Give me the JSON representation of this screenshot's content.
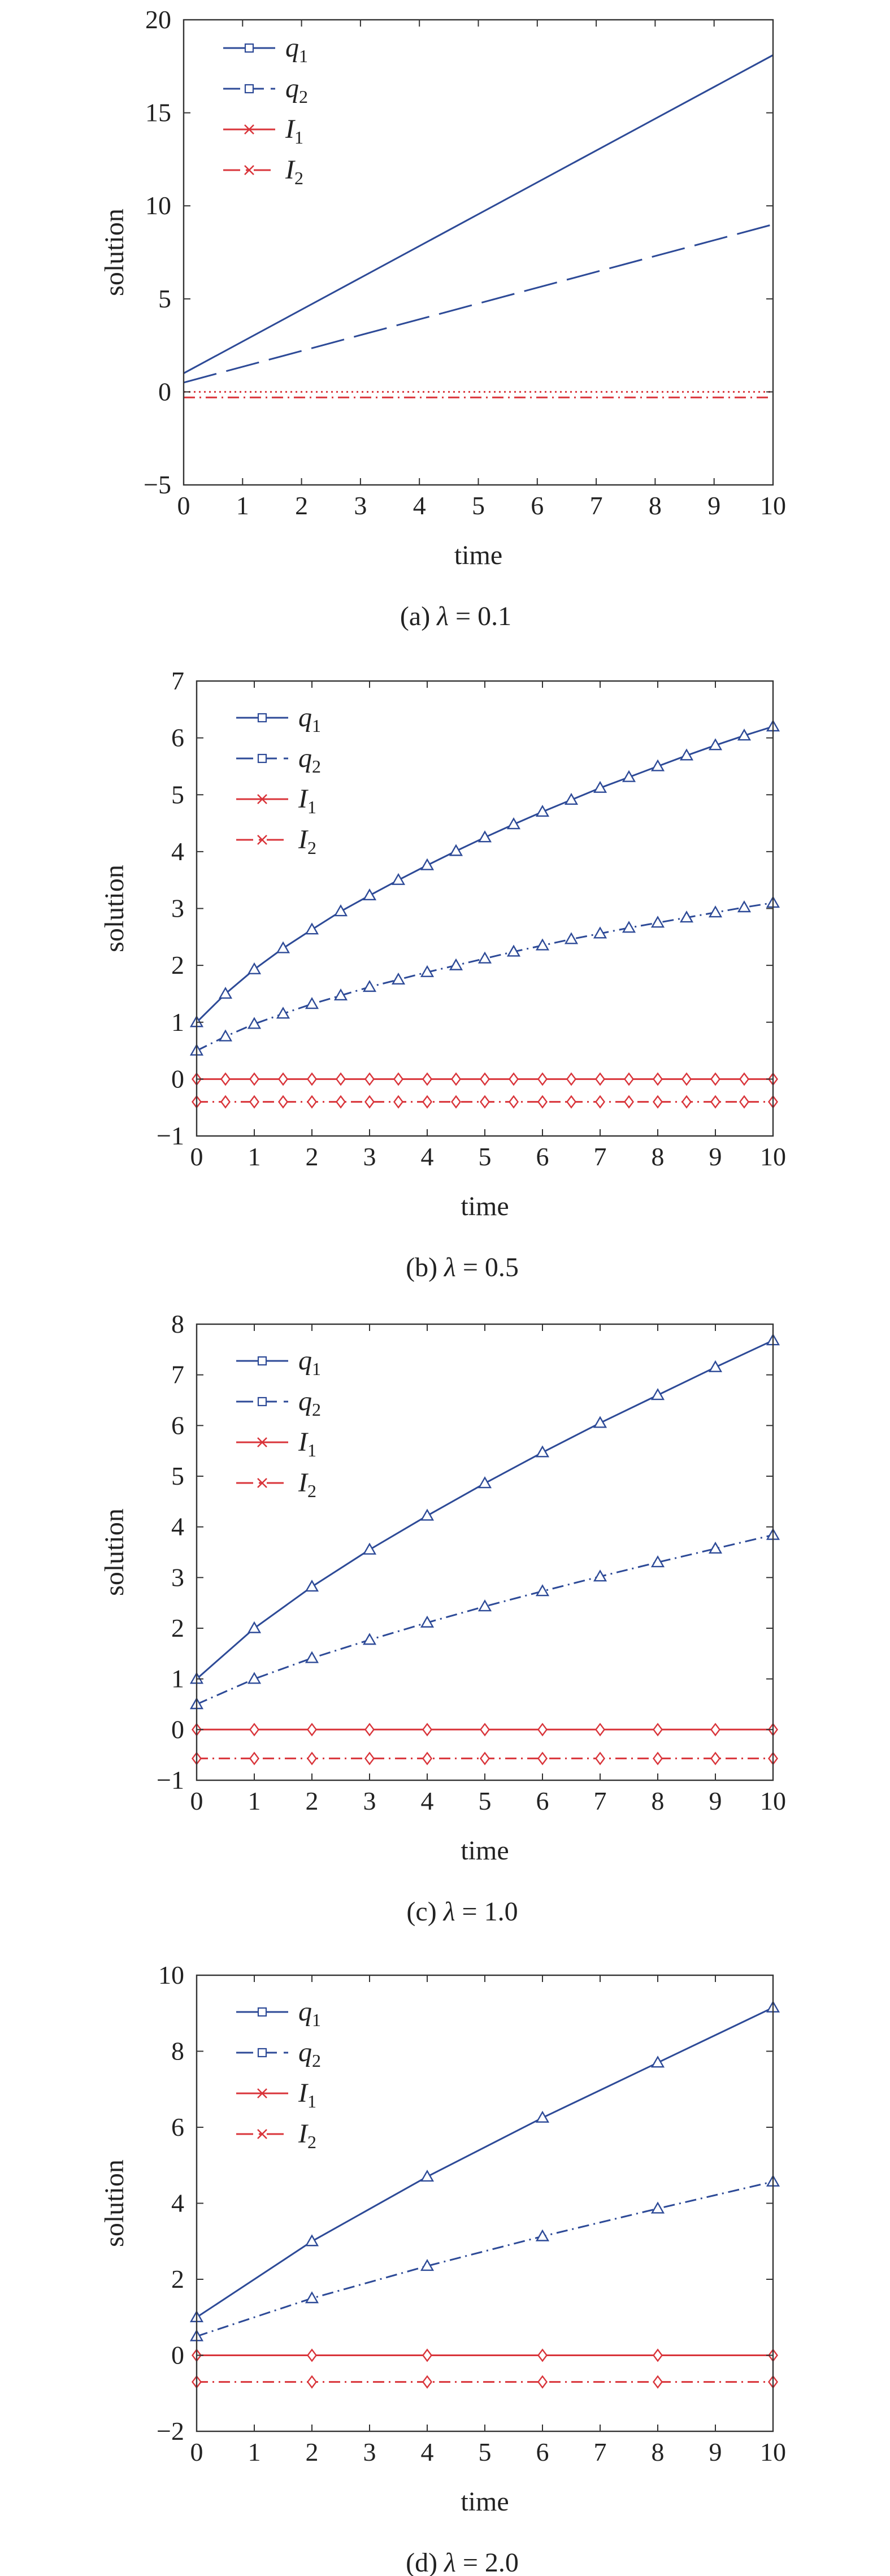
{
  "colors": {
    "blue": "#2d4a97",
    "red": "#d9343a",
    "axis": "#333333"
  },
  "chart_data": [
    {
      "type": "line",
      "caption_prefix": "(a) ",
      "caption_sym": "λ",
      "caption_rest": " = 0.1",
      "xlabel": "time",
      "ylabel": "solution",
      "xlim": [
        0,
        10
      ],
      "ylim": [
        -5,
        20
      ],
      "xticks": [
        "0",
        "1",
        "2",
        "3",
        "4",
        "5",
        "6",
        "7",
        "8",
        "9",
        "10"
      ],
      "yticks": [
        "−5",
        "0",
        "5",
        "10",
        "15",
        "20"
      ],
      "ytick_values": [
        -5,
        0,
        5,
        10,
        15,
        20
      ],
      "legend": [
        {
          "var": "q",
          "sub": "1",
          "style": "solid",
          "color": "blue",
          "marker": "square"
        },
        {
          "var": "q",
          "sub": "2",
          "style": "dash",
          "color": "blue",
          "marker": "square"
        },
        {
          "var": "I",
          "sub": "1",
          "style": "solid",
          "color": "red",
          "marker": "x"
        },
        {
          "var": "I",
          "sub": "2",
          "style": "dashdot",
          "color": "red",
          "marker": "x"
        }
      ],
      "series": [
        {
          "x": [
            0,
            10
          ],
          "y": [
            1,
            18.1
          ],
          "style": "solid",
          "color": "blue",
          "marker": "none"
        },
        {
          "x": [
            0,
            10
          ],
          "y": [
            0.5,
            9
          ],
          "style": "longdash",
          "color": "blue",
          "marker": "none"
        },
        {
          "x": [
            0,
            10
          ],
          "y": [
            0,
            0
          ],
          "style": "dotted",
          "color": "red",
          "marker": "none"
        },
        {
          "x": [
            0,
            10
          ],
          "y": [
            -0.3,
            -0.3
          ],
          "style": "dashdot",
          "color": "red",
          "marker": "none"
        }
      ]
    },
    {
      "type": "line",
      "caption_prefix": "(b) ",
      "caption_sym": "λ",
      "caption_rest": " = 0.5",
      "xlabel": "time",
      "ylabel": "solution",
      "xlim": [
        0,
        10
      ],
      "ylim": [
        -1,
        7
      ],
      "xticks": [
        "0",
        "1",
        "2",
        "3",
        "4",
        "5",
        "6",
        "7",
        "8",
        "9",
        "10"
      ],
      "yticks": [
        "−1",
        "0",
        "1",
        "2",
        "3",
        "4",
        "5",
        "6",
        "7"
      ],
      "ytick_values": [
        -1,
        0,
        1,
        2,
        3,
        4,
        5,
        6,
        7
      ],
      "legend": [
        {
          "var": "q",
          "sub": "1",
          "style": "solid",
          "color": "blue",
          "marker": "square"
        },
        {
          "var": "q",
          "sub": "2",
          "style": "dash",
          "color": "blue",
          "marker": "square"
        },
        {
          "var": "I",
          "sub": "1",
          "style": "solid",
          "color": "red",
          "marker": "x"
        },
        {
          "var": "I",
          "sub": "2",
          "style": "dashdot",
          "color": "red",
          "marker": "x"
        }
      ],
      "series": [
        {
          "x": [
            0,
            0.5,
            1,
            1.5,
            2,
            2.5,
            3,
            3.5,
            4,
            4.5,
            5,
            5.5,
            6,
            6.5,
            7,
            7.5,
            8,
            8.5,
            9,
            9.5,
            10
          ],
          "y": [
            1,
            1.5,
            1.93,
            2.3,
            2.63,
            2.95,
            3.23,
            3.5,
            3.76,
            4.01,
            4.25,
            4.48,
            4.7,
            4.91,
            5.12,
            5.31,
            5.5,
            5.69,
            5.87,
            6.04,
            6.2
          ],
          "style": "solid",
          "color": "blue",
          "marker": "triangle"
        },
        {
          "x": [
            0,
            0.5,
            1,
            1.5,
            2,
            2.5,
            3,
            3.5,
            4,
            4.5,
            5,
            5.5,
            6,
            6.5,
            7,
            7.5,
            8,
            8.5,
            9,
            9.5,
            10
          ],
          "y": [
            0.5,
            0.75,
            0.97,
            1.15,
            1.32,
            1.47,
            1.62,
            1.75,
            1.88,
            2.0,
            2.12,
            2.24,
            2.35,
            2.46,
            2.56,
            2.66,
            2.75,
            2.84,
            2.93,
            3.02,
            3.1
          ],
          "style": "dashdot",
          "color": "blue",
          "marker": "triangle"
        },
        {
          "x": [
            0,
            0.5,
            1,
            1.5,
            2,
            2.5,
            3,
            3.5,
            4,
            4.5,
            5,
            5.5,
            6,
            6.5,
            7,
            7.5,
            8,
            8.5,
            9,
            9.5,
            10
          ],
          "y": [
            0,
            0,
            0,
            0,
            0,
            0,
            0,
            0,
            0,
            0,
            0,
            0,
            0,
            0,
            0,
            0,
            0,
            0,
            0,
            0,
            0
          ],
          "style": "solid",
          "color": "red",
          "marker": "diamond"
        },
        {
          "x": [
            0,
            0.5,
            1,
            1.5,
            2,
            2.5,
            3,
            3.5,
            4,
            4.5,
            5,
            5.5,
            6,
            6.5,
            7,
            7.5,
            8,
            8.5,
            9,
            9.5,
            10
          ],
          "y": [
            -0.4,
            -0.4,
            -0.4,
            -0.4,
            -0.4,
            -0.4,
            -0.4,
            -0.4,
            -0.4,
            -0.4,
            -0.4,
            -0.4,
            -0.4,
            -0.4,
            -0.4,
            -0.4,
            -0.4,
            -0.4,
            -0.4,
            -0.4,
            -0.4
          ],
          "style": "dashdot",
          "color": "red",
          "marker": "diamond"
        }
      ]
    },
    {
      "type": "line",
      "caption_prefix": "(c) ",
      "caption_sym": "λ",
      "caption_rest": " = 1.0",
      "xlabel": "time",
      "ylabel": "solution",
      "xlim": [
        0,
        10
      ],
      "ylim": [
        -1,
        8
      ],
      "xticks": [
        "0",
        "1",
        "2",
        "3",
        "4",
        "5",
        "6",
        "7",
        "8",
        "9",
        "10"
      ],
      "yticks": [
        "−1",
        "0",
        "1",
        "2",
        "3",
        "4",
        "5",
        "6",
        "7",
        "8"
      ],
      "ytick_values": [
        -1,
        0,
        1,
        2,
        3,
        4,
        5,
        6,
        7,
        8
      ],
      "legend": [
        {
          "var": "q",
          "sub": "1",
          "style": "solid",
          "color": "blue",
          "marker": "square"
        },
        {
          "var": "q",
          "sub": "2",
          "style": "dash",
          "color": "blue",
          "marker": "square"
        },
        {
          "var": "I",
          "sub": "1",
          "style": "solid",
          "color": "red",
          "marker": "x"
        },
        {
          "var": "I",
          "sub": "2",
          "style": "dashdot",
          "color": "red",
          "marker": "x"
        }
      ],
      "series": [
        {
          "x": [
            0,
            1,
            2,
            3,
            4,
            5,
            6,
            7,
            8,
            9,
            10
          ],
          "y": [
            1,
            2.0,
            2.82,
            3.55,
            4.22,
            4.86,
            5.47,
            6.05,
            6.6,
            7.15,
            7.68
          ],
          "style": "solid",
          "color": "blue",
          "marker": "triangle"
        },
        {
          "x": [
            0,
            1,
            2,
            3,
            4,
            5,
            6,
            7,
            8,
            9,
            10
          ],
          "y": [
            0.5,
            1.0,
            1.41,
            1.77,
            2.11,
            2.43,
            2.73,
            3.02,
            3.3,
            3.57,
            3.84
          ],
          "style": "dashdot",
          "color": "blue",
          "marker": "triangle"
        },
        {
          "x": [
            0,
            1,
            2,
            3,
            4,
            5,
            6,
            7,
            8,
            9,
            10
          ],
          "y": [
            0,
            0,
            0,
            0,
            0,
            0,
            0,
            0,
            0,
            0,
            0
          ],
          "style": "solid",
          "color": "red",
          "marker": "diamond"
        },
        {
          "x": [
            0,
            1,
            2,
            3,
            4,
            5,
            6,
            7,
            8,
            9,
            10
          ],
          "y": [
            -0.57,
            -0.57,
            -0.57,
            -0.57,
            -0.57,
            -0.57,
            -0.57,
            -0.57,
            -0.57,
            -0.57,
            -0.57
          ],
          "style": "dashdot",
          "color": "red",
          "marker": "diamond"
        }
      ]
    },
    {
      "type": "line",
      "caption_prefix": "(d) ",
      "caption_sym": "λ",
      "caption_rest": " = 2.0",
      "xlabel": "time",
      "ylabel": "solution",
      "xlim": [
        0,
        10
      ],
      "ylim": [
        -2,
        10
      ],
      "xticks": [
        "0",
        "1",
        "2",
        "3",
        "4",
        "5",
        "6",
        "7",
        "8",
        "9",
        "10"
      ],
      "yticks": [
        "−2",
        "0",
        "2",
        "4",
        "6",
        "8",
        "10"
      ],
      "ytick_values": [
        -2,
        0,
        2,
        4,
        6,
        8,
        10
      ],
      "legend": [
        {
          "var": "q",
          "sub": "1",
          "style": "solid",
          "color": "blue",
          "marker": "square"
        },
        {
          "var": "q",
          "sub": "2",
          "style": "dash",
          "color": "blue",
          "marker": "square"
        },
        {
          "var": "I",
          "sub": "1",
          "style": "solid",
          "color": "red",
          "marker": "x"
        },
        {
          "var": "I",
          "sub": "2",
          "style": "dashdot",
          "color": "red",
          "marker": "x"
        }
      ],
      "series": [
        {
          "x": [
            0,
            2,
            4,
            6,
            8,
            10
          ],
          "y": [
            1,
            3.0,
            4.7,
            6.25,
            7.7,
            9.15
          ],
          "style": "solid",
          "color": "blue",
          "marker": "triangle"
        },
        {
          "x": [
            0,
            2,
            4,
            6,
            8,
            10
          ],
          "y": [
            0.5,
            1.5,
            2.35,
            3.13,
            3.86,
            4.57
          ],
          "style": "dashdot",
          "color": "blue",
          "marker": "triangle"
        },
        {
          "x": [
            0,
            2,
            4,
            6,
            8,
            10
          ],
          "y": [
            0,
            0,
            0,
            0,
            0,
            0
          ],
          "style": "solid",
          "color": "red",
          "marker": "diamond"
        },
        {
          "x": [
            0,
            2,
            4,
            6,
            8,
            10
          ],
          "y": [
            -0.7,
            -0.7,
            -0.7,
            -0.7,
            -0.7,
            -0.7
          ],
          "style": "dashdot",
          "color": "red",
          "marker": "diamond"
        }
      ]
    }
  ]
}
